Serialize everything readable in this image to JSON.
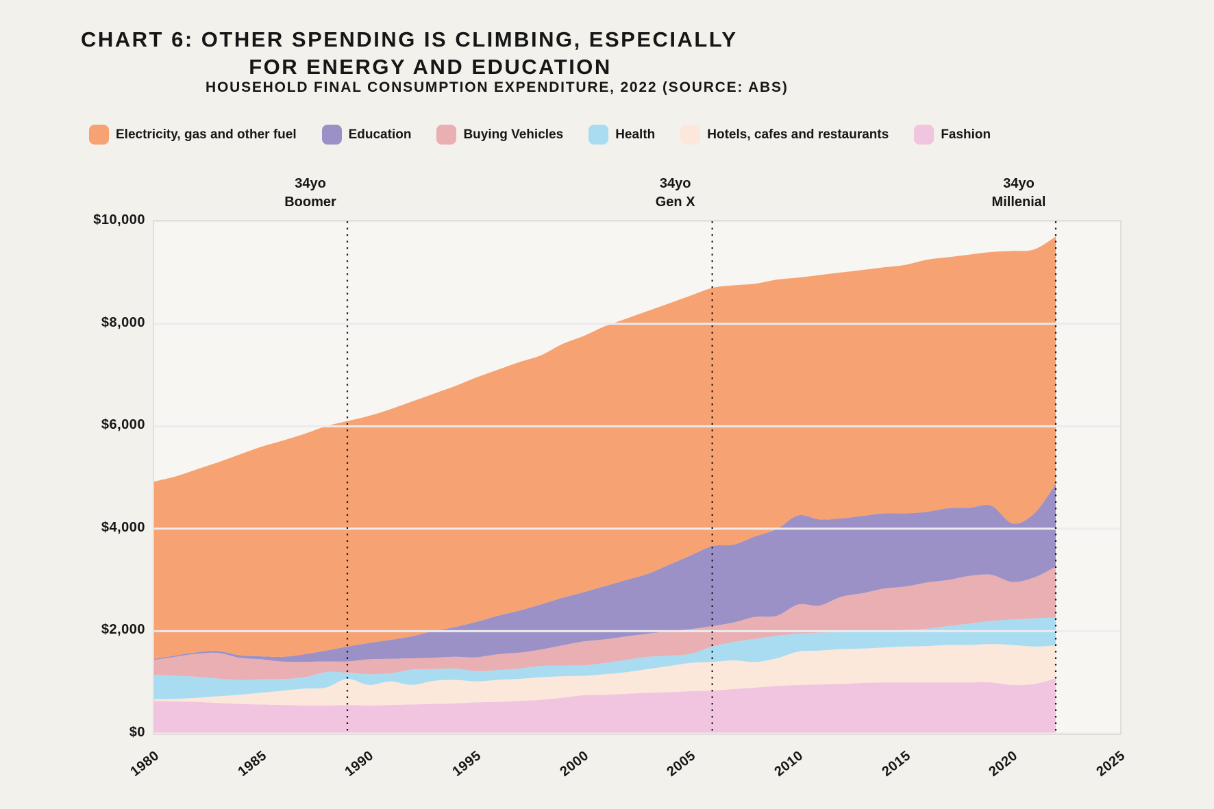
{
  "title": {
    "line1": "CHART 6: OTHER SPENDING IS CLIMBING, ESPECIALLY",
    "line2": "FOR ENERGY AND EDUCATION"
  },
  "subtitle": "HOUSEHOLD FINAL CONSUMPTION EXPENDITURE, 2022 (SOURCE: ABS)",
  "colors": {
    "electricity": "#F6A273",
    "education": "#9B91C7",
    "vehicles": "#E9AFB2",
    "health": "#A9DCF1",
    "hotels": "#FBE8DB",
    "fashion": "#F1C5DF",
    "page_bg": "#F3F1EC",
    "plot_bg": "#F7F6F2",
    "gridline": "#ECEBEE",
    "marker_line": "#1B1B1B"
  },
  "legend": [
    {
      "label": "Electricity, gas and other fuel",
      "color": "#F6A273"
    },
    {
      "label": "Education",
      "color": "#9B91C7"
    },
    {
      "label": "Buying Vehicles",
      "color": "#E9AFB2"
    },
    {
      "label": "Health",
      "color": "#A9DCF1"
    },
    {
      "label": "Hotels, cafes and restaurants",
      "color": "#FBE8DB"
    },
    {
      "label": "Fashion",
      "color": "#F1C5DF"
    }
  ],
  "axes": {
    "y_tick_labels": [
      "$0",
      "$2,000",
      "$4,000",
      "$6,000",
      "$8,000",
      "$10,000"
    ],
    "y_tick_values": [
      0,
      2000,
      4000,
      6000,
      8000,
      10000
    ],
    "x_ticks": [
      "1980",
      "1985",
      "1990",
      "1995",
      "2000",
      "2005",
      "2010",
      "2015",
      "2020",
      "2025"
    ],
    "x_tick_values": [
      1980,
      1985,
      1990,
      1995,
      2000,
      2005,
      2010,
      2015,
      2020,
      2025
    ]
  },
  "chart_data": {
    "type": "area",
    "stacked": true,
    "x_range": [
      1980,
      2025
    ],
    "y_range": [
      0,
      10000
    ],
    "grid": true,
    "legend_position": "top",
    "x": [
      1980,
      1981,
      1982,
      1983,
      1984,
      1985,
      1986,
      1987,
      1988,
      1989,
      1990,
      1991,
      1992,
      1993,
      1994,
      1995,
      1996,
      1997,
      1998,
      1999,
      2000,
      2001,
      2002,
      2003,
      2004,
      2005,
      2006,
      2007,
      2008,
      2009,
      2010,
      2011,
      2012,
      2013,
      2014,
      2015,
      2016,
      2017,
      2018,
      2019,
      2020,
      2021,
      2022
    ],
    "series": [
      {
        "name": "Fashion",
        "color": "#F1C5DF",
        "values": [
          640,
          630,
          620,
          600,
          580,
          570,
          560,
          550,
          550,
          560,
          550,
          560,
          570,
          580,
          590,
          610,
          620,
          640,
          660,
          700,
          750,
          760,
          780,
          800,
          810,
          830,
          840,
          870,
          900,
          930,
          950,
          960,
          970,
          990,
          1000,
          1000,
          1000,
          1000,
          1000,
          1000,
          950,
          970,
          1080
        ]
      },
      {
        "name": "Hotels, cafes and restaurants",
        "color": "#FBE8DB",
        "values": [
          30,
          50,
          80,
          130,
          180,
          230,
          280,
          330,
          350,
          510,
          400,
          460,
          380,
          450,
          460,
          410,
          430,
          430,
          440,
          420,
          380,
          400,
          420,
          460,
          510,
          550,
          560,
          560,
          500,
          540,
          650,
          660,
          680,
          670,
          680,
          700,
          710,
          730,
          730,
          750,
          780,
          730,
          640
        ]
      },
      {
        "name": "Health",
        "color": "#A9DCF1",
        "values": [
          480,
          450,
          410,
          345,
          290,
          260,
          225,
          220,
          300,
          120,
          210,
          160,
          300,
          230,
          220,
          200,
          190,
          200,
          220,
          210,
          200,
          220,
          240,
          240,
          200,
          180,
          300,
          360,
          450,
          440,
          350,
          350,
          330,
          330,
          320,
          330,
          340,
          370,
          420,
          450,
          500,
          550,
          550
        ]
      },
      {
        "name": "Buying Vehicles",
        "color": "#E9AFB2",
        "values": [
          290,
          370,
          450,
          500,
          430,
          390,
          340,
          300,
          210,
          220,
          290,
          280,
          220,
          220,
          230,
          270,
          310,
          310,
          320,
          390,
          470,
          460,
          460,
          450,
          480,
          480,
          400,
          380,
          430,
          390,
          570,
          530,
          690,
          750,
          830,
          840,
          900,
          900,
          930,
          900,
          730,
          800,
          990
        ]
      },
      {
        "name": "Education",
        "color": "#9B91C7",
        "values": [
          20,
          25,
          30,
          35,
          50,
          60,
          95,
          150,
          210,
          290,
          320,
          370,
          430,
          520,
          580,
          690,
          750,
          820,
          880,
          930,
          960,
          1040,
          1100,
          1170,
          1300,
          1440,
          1560,
          1520,
          1570,
          1690,
          1740,
          1680,
          1530,
          1510,
          1470,
          1430,
          1380,
          1400,
          1330,
          1350,
          1140,
          1250,
          1610
        ]
      },
      {
        "name": "Electricity, gas and other fuel",
        "color": "#F6A273",
        "values": [
          3460,
          3495,
          3570,
          3690,
          3920,
          4090,
          4220,
          4300,
          4380,
          4400,
          4430,
          4500,
          4580,
          4630,
          4700,
          4770,
          4800,
          4850,
          4860,
          4950,
          5000,
          5070,
          5100,
          5130,
          5100,
          5070,
          5040,
          5060,
          4930,
          4870,
          4640,
          4770,
          4800,
          4800,
          4800,
          4850,
          4920,
          4900,
          4940,
          4950,
          5320,
          5150,
          4830
        ]
      }
    ],
    "markers": [
      {
        "line1": "34yo",
        "line2": "Boomer",
        "x_year": 1989
      },
      {
        "line1": "34yo",
        "line2": "Gen X",
        "x_year": 2006
      },
      {
        "line1": "34yo",
        "line2": "Millenial",
        "x_year": 2022
      }
    ]
  }
}
